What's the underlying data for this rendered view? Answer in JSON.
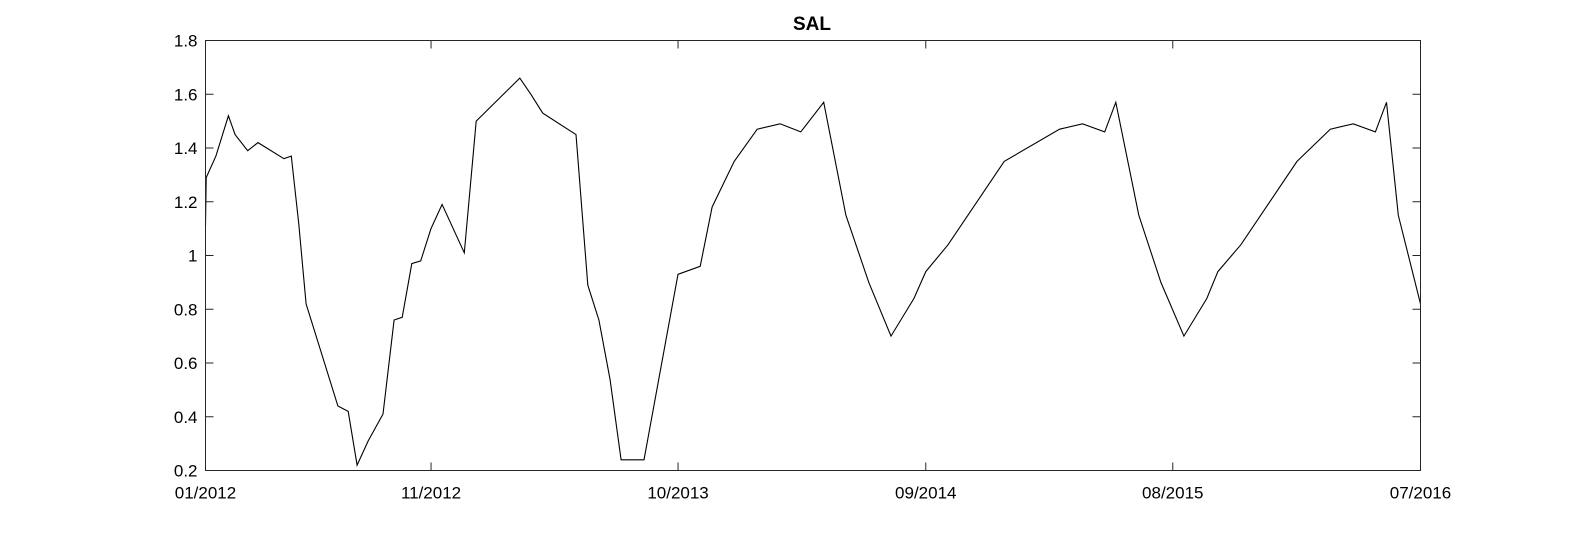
{
  "chart_data": {
    "type": "line",
    "title": "SAL",
    "xlabel": "",
    "ylabel": "",
    "ylim": [
      0.2,
      1.8
    ],
    "yticks": [
      0.2,
      0.4,
      0.6,
      0.8,
      1,
      1.2,
      1.4,
      1.6,
      1.8
    ],
    "ytick_labels": [
      "0.2",
      "0.4",
      "0.6",
      "0.8",
      "1",
      "1.2",
      "1.4",
      "1.6",
      "1.8"
    ],
    "xlim": [
      "2012-01-01",
      "2016-07-01"
    ],
    "xticks": [
      "2012-01-01",
      "2012-11-01",
      "2013-10-01",
      "2014-09-01",
      "2015-08-01",
      "2016-07-01"
    ],
    "xtick_labels": [
      "01/2012",
      "11/2012",
      "10/2013",
      "09/2014",
      "08/2015",
      "07/2016"
    ],
    "grid": false,
    "line_color": "#000000",
    "series": [
      {
        "x": [
          "2012-01-01",
          "2012-01-02",
          "2012-01-15",
          "2012-02-01",
          "2012-02-10",
          "2012-02-27",
          "2012-03-12",
          "2012-04-16",
          "2012-04-26",
          "2012-05-06",
          "2012-05-16",
          "2012-06-28",
          "2012-07-12",
          "2012-07-24",
          "2012-08-08",
          "2012-08-28",
          "2012-09-12",
          "2012-09-23",
          "2012-10-06",
          "2012-10-18",
          "2012-11-01",
          "2012-11-16",
          "2012-12-16",
          "2013-01-01",
          "2013-03-01",
          "2013-03-16",
          "2013-04-01",
          "2013-05-16",
          "2013-06-01",
          "2013-06-16",
          "2013-07-01",
          "2013-07-16",
          "2013-08-16",
          "2013-10-01",
          "2013-10-31",
          "2013-11-16",
          "2013-12-16",
          "2014-01-16",
          "2014-02-16",
          "2014-03-16",
          "2014-04-16",
          "2014-05-16",
          "2014-06-16",
          "2014-07-16",
          "2014-08-16",
          "2014-09-01",
          "2014-10-01",
          "2014-12-16",
          "2015-03-01",
          "2015-04-01",
          "2015-05-01",
          "2015-05-16",
          "2015-06-16",
          "2015-07-16",
          "2015-08-16",
          "2015-09-16",
          "2015-10-01",
          "2015-11-01",
          "2016-01-16",
          "2016-03-01",
          "2016-04-01",
          "2016-05-01",
          "2016-05-16",
          "2016-06-01",
          "2016-07-01"
        ],
        "y": [
          1.11,
          1.29,
          1.37,
          1.52,
          1.45,
          1.39,
          1.42,
          1.36,
          1.37,
          1.12,
          0.82,
          0.44,
          0.42,
          0.22,
          0.31,
          0.41,
          0.76,
          0.77,
          0.97,
          0.98,
          1.1,
          1.19,
          1.01,
          1.5,
          1.66,
          1.6,
          1.53,
          1.45,
          0.89,
          0.76,
          0.54,
          0.24,
          0.24,
          0.93,
          0.96,
          1.18,
          1.35,
          1.47,
          1.49,
          1.46,
          1.57,
          1.15,
          0.9,
          0.7,
          0.84,
          0.94,
          1.04,
          1.35,
          1.47,
          1.49,
          1.46,
          1.57,
          1.15,
          0.9,
          0.7,
          0.84,
          0.94,
          1.04,
          1.35,
          1.47,
          1.49,
          1.46,
          1.57,
          1.15,
          0.82
        ]
      }
    ]
  }
}
